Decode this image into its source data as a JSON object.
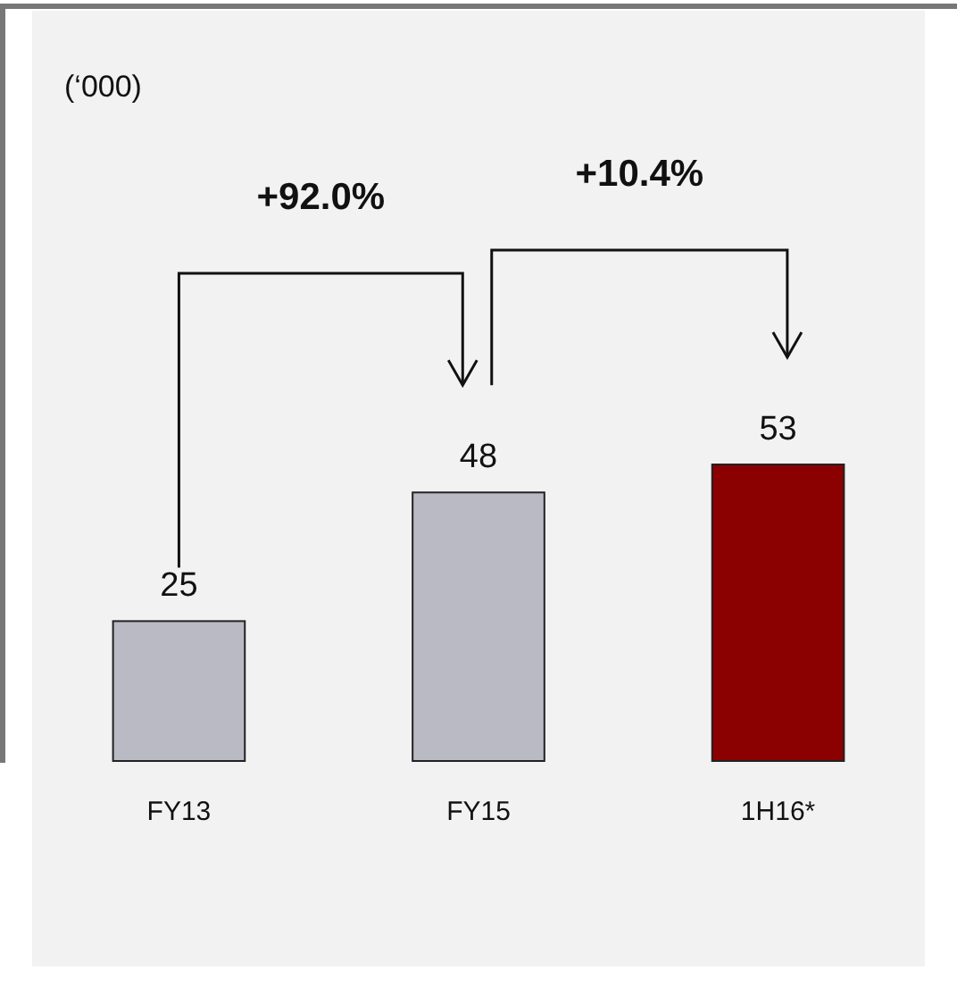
{
  "chart_data": {
    "type": "bar",
    "categories": [
      "FY13",
      "FY15",
      "1H16*"
    ],
    "values": [
      25,
      48,
      53
    ],
    "colors": [
      "#b9bac4",
      "#b9bac4",
      "#8b0000"
    ],
    "data_labels": true,
    "annotations": [
      "(‘000)",
      "+92.0%",
      "+10.4%"
    ]
  }
}
